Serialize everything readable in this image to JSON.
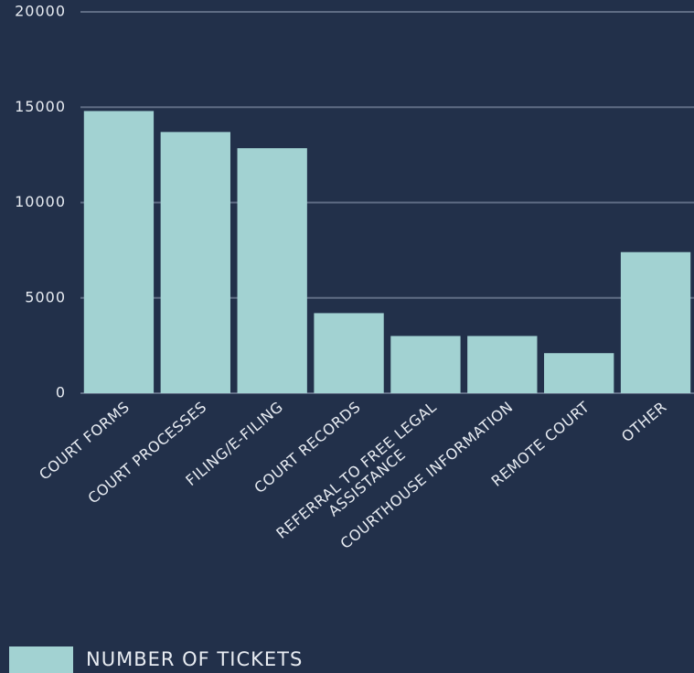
{
  "chart_data": {
    "type": "bar",
    "categories": [
      "COURT FORMS",
      "COURT PROCESSES",
      "FILING/E-FILING",
      "COURT RECORDS",
      "REFERRAL TO FREE LEGAL\nASSISTANCE",
      "COURTHOUSE INFORMATION",
      "REMOTE COURT",
      "OTHER"
    ],
    "series": [
      {
        "name": "NUMBER OF TICKETS",
        "color": "#a2d2d2",
        "values": [
          14800,
          13700,
          12850,
          4200,
          3000,
          3000,
          2100,
          7400
        ]
      }
    ],
    "ylim": [
      0,
      20000
    ],
    "yticks": [
      0,
      5000,
      10000,
      15000,
      20000
    ],
    "grid": true,
    "legend": "bottom-left"
  }
}
